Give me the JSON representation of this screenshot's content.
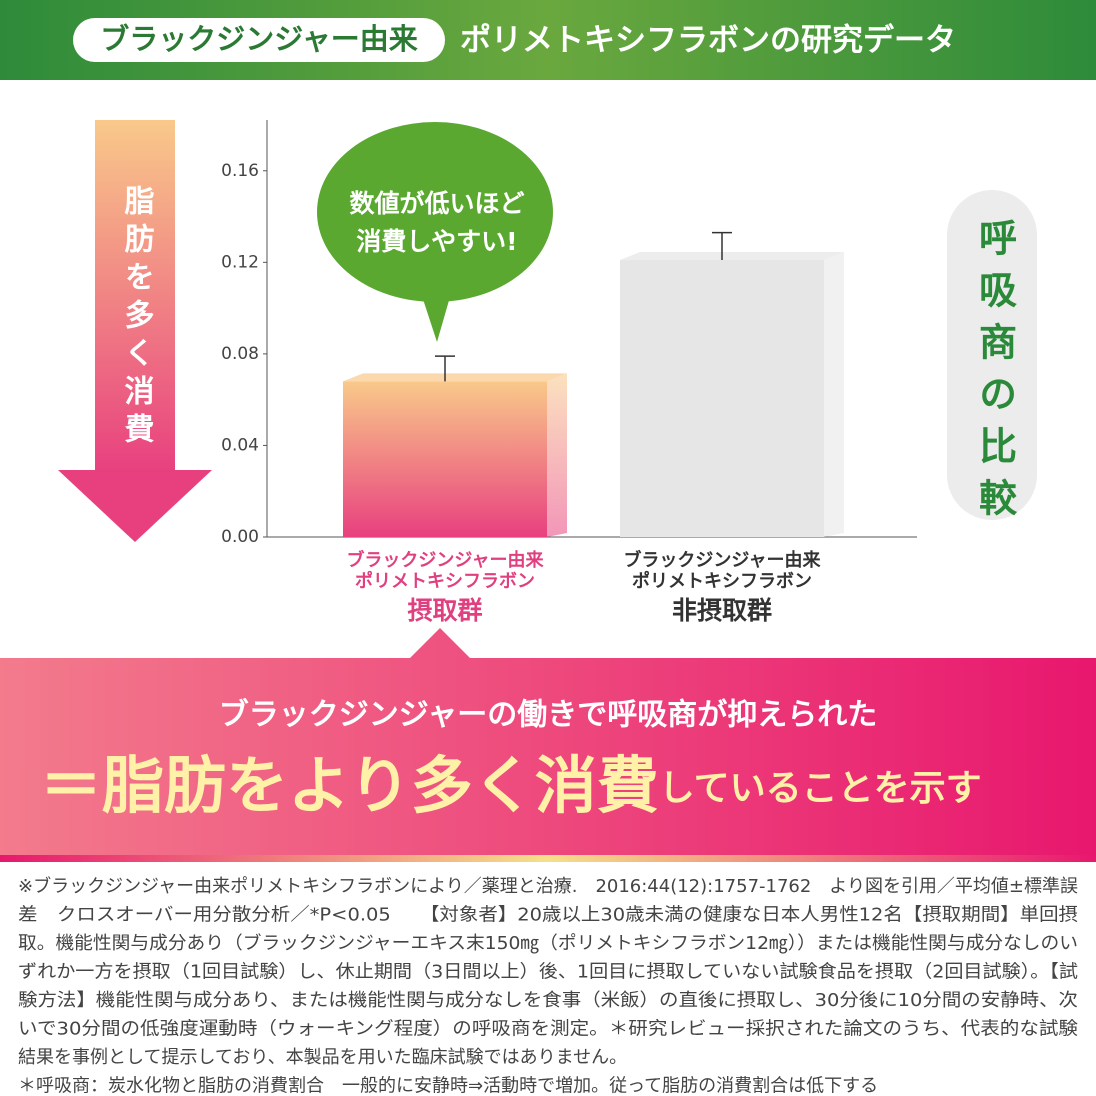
{
  "header": {
    "badge": "ブラックジンジャー由来",
    "title": "ポリメトキシフラボンの研究データ"
  },
  "chart_data": {
    "type": "bar",
    "categories": [
      [
        "ブラックジンジャー由来",
        "ポリメトキシフラボン",
        "摂取群"
      ],
      [
        "ブラックジンジャー由来",
        "ポリメトキシフラボン",
        "非摂取群"
      ]
    ],
    "values": [
      0.068,
      0.121
    ],
    "errors": [
      0.011,
      0.012
    ],
    "colors": [
      [
        "#f9c98a",
        "#e8407f"
      ],
      [
        "#e6e6e6",
        "#e6e6e6"
      ]
    ],
    "label_colors": [
      "#e0407f",
      "#333333"
    ],
    "ylim": [
      0,
      0.18
    ],
    "yticks": [
      {
        "value": 0,
        "label": "0.00"
      },
      {
        "value": 0.04,
        "label": "0.04"
      },
      {
        "value": 0.08,
        "label": "0.08"
      },
      {
        "value": 0.12,
        "label": "0.12"
      },
      {
        "value": 0.16,
        "label": "0.16"
      }
    ],
    "callout": [
      "数値が低いほど",
      "消費しやすい!"
    ],
    "left_arrow_label": "脂肪を多く消費",
    "right_label": "呼吸商の比較"
  },
  "banner": {
    "line1": "ブラックジンジャーの働きで呼吸商が抑えられた",
    "line2_main": "＝脂肪をより多く消費",
    "line2_sub": "していることを示す"
  },
  "footnote": [
    "※ブラックジンジャー由来ポリメトキシフラボンにより／薬理と治療.　2016:44(12):1757-1762　より図を引用／平均値±標準誤",
    "差　クロスオーバー用分散分析／*P<0.05　　【対象者】20歳以上30歳未満の健康な日本人男性12名【摂取期間】単回摂",
    "取。機能性関与成分あり（ブラックジンジャーエキス末150㎎（ポリメトキシフラボン12㎎））または機能性関与成分なしのい",
    "ずれか一方を摂取（1回目試験）し、休止期間（3日間以上）後、1回目に摂取していない試験食品を摂取（2回目試験）。【試",
    "験方法】機能性関与成分あり、または機能性関与成分なしを食事（米飯）の直後に摂取し、30分後に10分間の安静時、次",
    "いで30分間の低強度運動時（ウォーキング程度）の呼吸商を測定。＊研究レビュー採択された論文のうち、代表的な試験",
    "結果を事例として提示しており、本製品を用いた臨床試験ではありません。",
    "＊呼吸商：炭水化物と脂肪の消費割合　一般的に安静時⇒活動時で増加。従って脂肪の消費割合は低下する"
  ]
}
